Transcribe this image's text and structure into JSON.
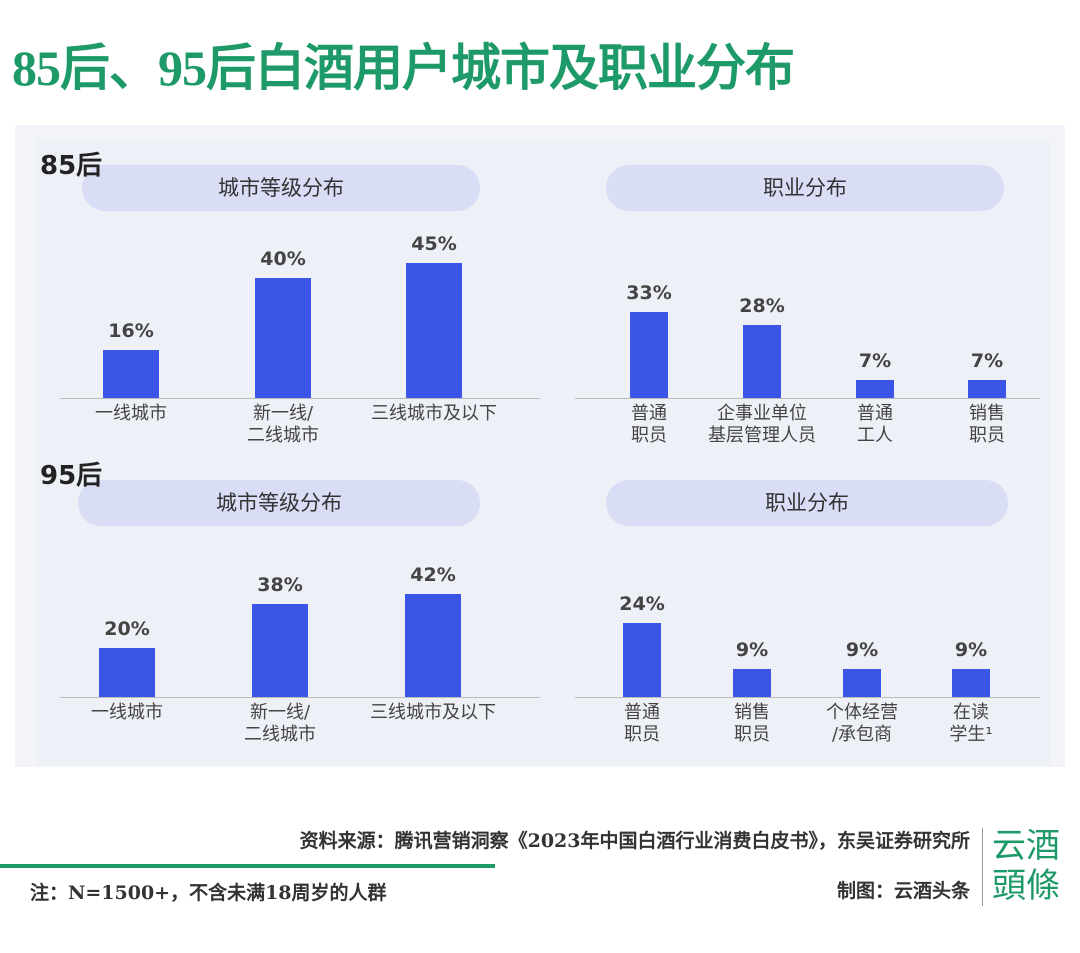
{
  "title": "85后、95后白酒用户城市及职业分布",
  "chart_data": [
    {
      "type": "bar",
      "cohort": "85后",
      "title": "城市等级分布",
      "color": "#3b55e6",
      "categories": [
        "一线城市",
        "新一线/\n二线城市",
        "三线城市及以下"
      ],
      "values": [
        16,
        40,
        45
      ],
      "value_labels": [
        "16%",
        "40%",
        "45%"
      ]
    },
    {
      "type": "bar",
      "title": "职业分布",
      "color": "#3b55e6",
      "categories": [
        "普通\n职员",
        "企事业单位\n基层管理人员",
        "普通\n工人",
        "销售\n职员"
      ],
      "values": [
        33,
        28,
        7,
        7
      ],
      "value_labels": [
        "33%",
        "28%",
        "7%",
        "7%"
      ]
    },
    {
      "type": "bar",
      "cohort": "95后",
      "title": "城市等级分布",
      "color": "#3b55e6",
      "categories": [
        "一线城市",
        "新一线/\n二线城市",
        "三线城市及以下"
      ],
      "values": [
        20,
        38,
        42
      ],
      "value_labels": [
        "20%",
        "38%",
        "42%"
      ]
    },
    {
      "type": "bar",
      "title": "职业分布",
      "color": "#3b55e6",
      "categories": [
        "普通\n职员",
        "销售\n职员",
        "个体经营\n/承包商",
        "在读\n学生¹"
      ],
      "values": [
        24,
        9,
        9,
        9
      ],
      "value_labels": [
        "24%",
        "9%",
        "9%",
        "9%"
      ]
    }
  ],
  "footer": {
    "source": "资料来源：腾讯营销洞察《2023年中国白酒行业消费白皮书》，东吴证券研究所",
    "note": "注：N=1500+，不含未满18周岁的人群",
    "credit": "制图：云酒头条",
    "logo": "云酒\n頭條"
  }
}
